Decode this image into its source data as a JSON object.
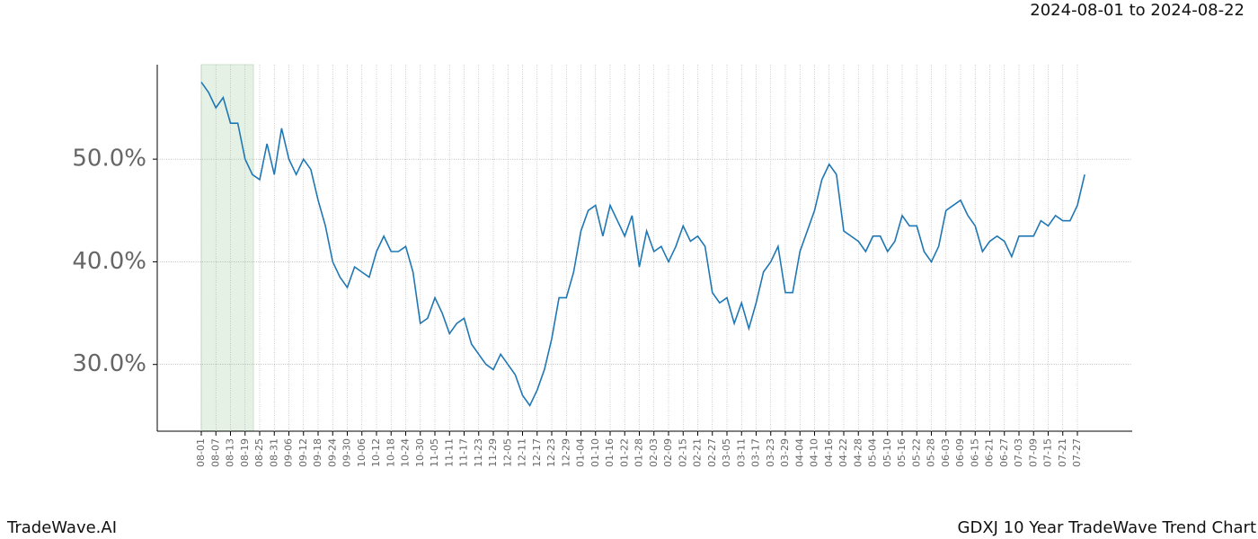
{
  "chart_data": {
    "type": "line",
    "title": "2024-08-01 to 2024-08-22",
    "footer_left": "TradeWave.AI",
    "footer_right": "GDXJ 10 Year TradeWave Trend Chart",
    "categories": [
      "08-01",
      null,
      "08-07",
      null,
      "08-13",
      null,
      "08-19",
      null,
      "08-25",
      null,
      "08-31",
      null,
      "09-06",
      null,
      "09-12",
      null,
      "09-18",
      null,
      "09-24",
      null,
      "09-30",
      null,
      "10-06",
      null,
      "10-12",
      null,
      "10-18",
      null,
      "10-24",
      null,
      "10-30",
      null,
      "11-05",
      null,
      "11-11",
      null,
      "11-17",
      null,
      "11-23",
      null,
      "11-29",
      null,
      "12-05",
      null,
      "12-11",
      null,
      "12-17",
      null,
      "12-23",
      null,
      "12-29",
      null,
      "01-04",
      null,
      "01-10",
      null,
      "01-16",
      null,
      "01-22",
      null,
      "01-28",
      null,
      "02-03",
      null,
      "02-09",
      null,
      "02-15",
      null,
      "02-21",
      null,
      "02-27",
      null,
      "03-05",
      null,
      "03-11",
      null,
      "03-17",
      null,
      "03-23",
      null,
      "03-29",
      null,
      "04-04",
      null,
      "04-10",
      null,
      "04-16",
      null,
      "04-22",
      null,
      "04-28",
      null,
      "05-04",
      null,
      "05-10",
      null,
      "05-16",
      null,
      "05-22",
      null,
      "05-28",
      null,
      "06-03",
      null,
      "06-09",
      null,
      "06-15",
      null,
      "06-21",
      null,
      "06-27",
      null,
      "07-03",
      null,
      "07-09",
      null,
      "07-15",
      null,
      "07-21",
      null,
      "07-27",
      null
    ],
    "series": [
      {
        "color": "#1f77b4",
        "values": [
          57.5,
          56.5,
          55,
          56,
          53.5,
          53.5,
          50,
          48.5,
          48,
          51.5,
          48.5,
          53,
          50,
          48.5,
          50,
          49,
          46,
          43.5,
          40,
          38.5,
          37.5,
          39.5,
          39,
          38.5,
          41,
          42.5,
          41,
          41,
          41.5,
          39,
          34,
          34.5,
          36.5,
          35,
          33,
          34,
          34.5,
          32,
          31,
          30,
          29.5,
          31,
          30,
          29,
          27,
          26,
          27.5,
          29.5,
          32.5,
          36.5,
          36.5,
          39,
          43,
          45,
          45.5,
          42.5,
          45.5,
          44,
          42.5,
          44.5,
          39.5,
          43,
          41,
          41.5,
          40,
          41.5,
          43.5,
          42,
          42.5,
          41.5,
          37,
          36,
          36.5,
          34,
          36,
          33.5,
          36,
          39,
          40,
          41.5,
          37,
          37,
          41,
          43,
          45,
          48,
          49.5,
          48.5,
          43,
          42.5,
          42,
          41,
          42.5,
          42.5,
          41,
          42,
          44.5,
          43.5,
          43.5,
          41,
          40,
          41.5,
          45,
          45.5,
          46,
          44.5,
          43.5,
          41,
          42,
          42.5,
          42,
          40.5,
          42.5,
          42.5,
          42.5,
          44,
          43.5,
          44.5,
          44,
          44,
          45.5,
          48.5
        ]
      }
    ],
    "ylim": [
      23.5,
      59.2
    ],
    "yticks": [
      {
        "value": 30,
        "label": "30.0%"
      },
      {
        "value": 40,
        "label": "40.0%"
      },
      {
        "value": 50,
        "label": "50.0%"
      }
    ],
    "grid": true
  }
}
